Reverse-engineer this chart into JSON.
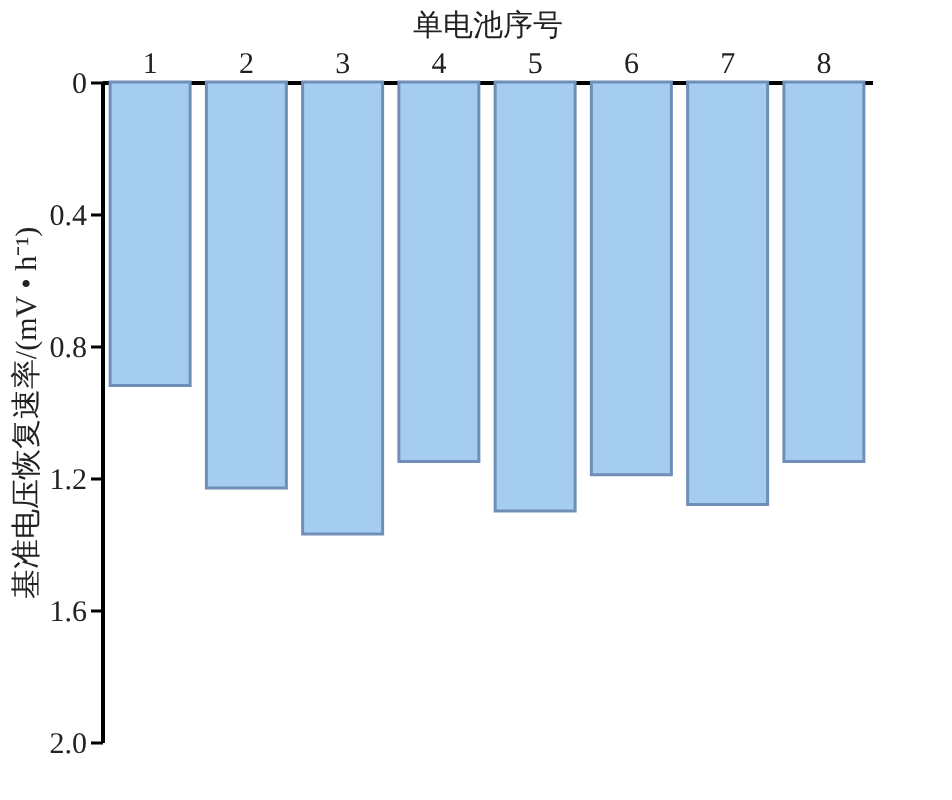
{
  "chart_data": {
    "type": "bar",
    "xlabel": "单电池序号",
    "ylabel": "基准电压恢复速率/(mV • h⁻¹)",
    "categories": [
      "1",
      "2",
      "3",
      "4",
      "5",
      "6",
      "7",
      "8"
    ],
    "values": [
      0.92,
      1.23,
      1.37,
      1.15,
      1.3,
      1.19,
      1.28,
      1.15
    ],
    "color": "#a4cdf0",
    "ylim": [
      2.0,
      0
    ],
    "yticks": [
      0,
      0.4,
      0.8,
      1.2,
      1.6,
      {
        "value": 2.0,
        "label": "2.0"
      }
    ],
    "grid": false
  }
}
